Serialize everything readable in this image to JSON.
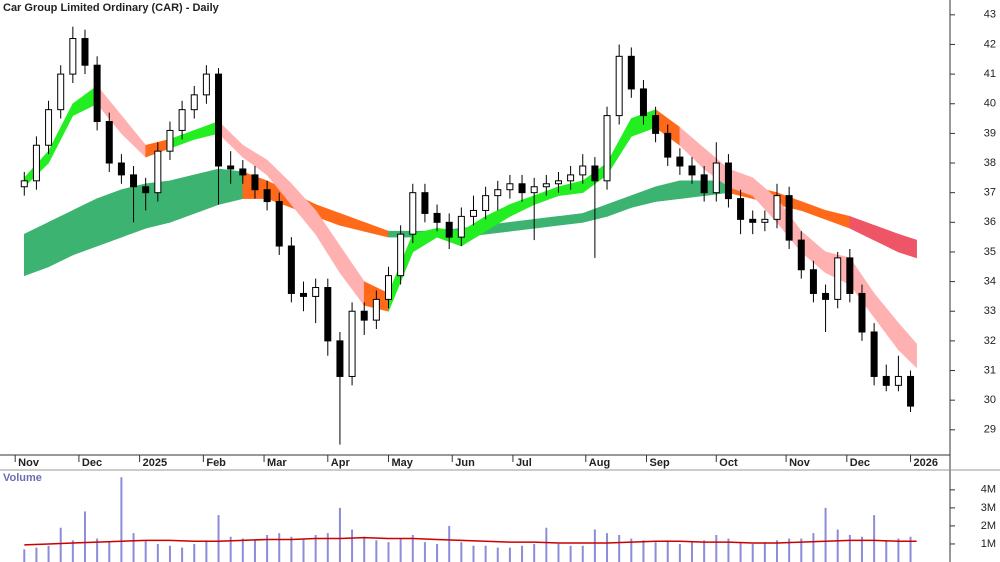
{
  "chart_data": {
    "type": "candlestick",
    "title": "Car Group Limited Ordinary (CAR) - Daily",
    "x": [
      0,
      4,
      8,
      12,
      16,
      20,
      24,
      28,
      32,
      36,
      40,
      44,
      48,
      52,
      56,
      60,
      64,
      68,
      72,
      76,
      80,
      84,
      88,
      92,
      96,
      100,
      104,
      108,
      112,
      116,
      120,
      124,
      128,
      132,
      136,
      140,
      144,
      148,
      152,
      156,
      160,
      164,
      168,
      172,
      176,
      180,
      184,
      188,
      192,
      196,
      200,
      204,
      208,
      212,
      216,
      220,
      224,
      228,
      232,
      236,
      240,
      244,
      248,
      252,
      256,
      260,
      264,
      268,
      272,
      276,
      280,
      284,
      288,
      292
    ],
    "open": [
      37.2,
      37.4,
      38.6,
      39.8,
      41.0,
      42.2,
      41.3,
      39.4,
      38.0,
      37.6,
      37.2,
      37.0,
      38.4,
      39.1,
      39.8,
      40.3,
      41.0,
      37.9,
      37.8,
      37.6,
      37.1,
      36.7,
      35.2,
      33.6,
      33.5,
      33.8,
      32.0,
      30.8,
      33.0,
      32.7,
      33.4,
      34.2,
      35.6,
      37.0,
      36.3,
      36.0,
      35.5,
      36.2,
      36.4,
      36.9,
      37.1,
      37.3,
      37.0,
      37.2,
      37.3,
      37.4,
      37.6,
      37.9,
      37.4,
      39.6,
      41.6,
      40.5,
      39.6,
      39.0,
      38.2,
      37.9,
      37.6,
      37.0,
      38.0,
      36.8,
      36.1,
      36.0,
      36.1,
      36.9,
      35.4,
      34.4,
      33.6,
      33.4,
      34.8,
      33.6,
      32.3,
      30.8,
      30.5,
      30.8
    ],
    "high": [
      37.7,
      38.9,
      40.1,
      41.3,
      42.6,
      42.5,
      41.6,
      39.7,
      38.3,
      37.9,
      37.5,
      38.7,
      39.4,
      40.1,
      40.6,
      41.3,
      41.2,
      38.4,
      38.1,
      37.9,
      37.4,
      37.0,
      35.5,
      34.0,
      34.1,
      34.1,
      32.3,
      33.3,
      33.3,
      33.7,
      34.5,
      35.9,
      37.3,
      37.3,
      36.6,
      36.3,
      36.5,
      36.9,
      37.2,
      37.4,
      37.6,
      37.6,
      37.5,
      37.6,
      37.7,
      37.9,
      38.3,
      38.2,
      39.9,
      42.0,
      41.9,
      40.8,
      39.9,
      39.3,
      38.5,
      38.2,
      37.9,
      38.7,
      38.3,
      37.1,
      36.4,
      36.4,
      37.3,
      37.2,
      35.7,
      34.7,
      33.9,
      35.0,
      35.1,
      33.9,
      32.6,
      31.2,
      31.5,
      31.0
    ],
    "low": [
      36.9,
      37.1,
      38.3,
      39.5,
      40.7,
      41.0,
      39.1,
      37.7,
      37.3,
      36.0,
      36.4,
      36.7,
      38.1,
      38.8,
      39.5,
      40.0,
      36.6,
      37.3,
      37.3,
      36.8,
      36.4,
      34.9,
      33.3,
      33.0,
      32.6,
      31.5,
      28.5,
      30.5,
      32.2,
      32.4,
      33.1,
      33.9,
      35.3,
      36.0,
      35.7,
      35.1,
      35.2,
      35.9,
      36.1,
      36.4,
      36.8,
      36.7,
      35.4,
      36.9,
      37.0,
      37.1,
      37.3,
      34.8,
      37.1,
      39.3,
      40.2,
      39.3,
      38.7,
      37.9,
      37.6,
      37.3,
      36.7,
      36.7,
      36.5,
      35.6,
      35.6,
      35.7,
      35.8,
      35.1,
      34.1,
      33.3,
      32.3,
      33.1,
      33.3,
      32.0,
      30.5,
      30.3,
      30.3,
      29.6
    ],
    "close": [
      37.4,
      38.6,
      39.8,
      41.0,
      42.2,
      41.3,
      39.4,
      38.0,
      37.6,
      37.2,
      37.0,
      38.4,
      39.1,
      39.8,
      40.3,
      41.0,
      37.9,
      37.8,
      37.6,
      37.1,
      36.7,
      35.2,
      33.6,
      33.5,
      33.8,
      32.0,
      30.8,
      33.0,
      32.7,
      33.4,
      34.2,
      35.6,
      37.0,
      36.3,
      36.0,
      35.5,
      36.2,
      36.4,
      36.9,
      37.1,
      37.3,
      37.0,
      37.2,
      37.3,
      37.4,
      37.6,
      37.9,
      37.4,
      39.6,
      41.6,
      40.5,
      39.6,
      39.0,
      38.2,
      37.9,
      37.6,
      37.0,
      38.0,
      36.8,
      36.1,
      36.0,
      36.1,
      36.9,
      35.4,
      34.4,
      33.6,
      33.4,
      34.8,
      33.6,
      32.3,
      30.8,
      30.5,
      30.8,
      29.8
    ],
    "up_color": "#ffffff",
    "down_color": "#000000",
    "xlim": [
      -8,
      305
    ],
    "xticks": [
      {
        "value": -3,
        "label": "Nov"
      },
      {
        "value": 18,
        "label": "Dec"
      },
      {
        "value": 38,
        "label": "2025"
      },
      {
        "value": 59,
        "label": "Feb"
      },
      {
        "value": 79,
        "label": "Mar"
      },
      {
        "value": 100,
        "label": "Apr"
      },
      {
        "value": 120,
        "label": "May"
      },
      {
        "value": 141,
        "label": "Jun"
      },
      {
        "value": 161,
        "label": "Jul"
      },
      {
        "value": 185,
        "label": "Aug"
      },
      {
        "value": 205,
        "label": "Sep"
      },
      {
        "value": 228,
        "label": "Oct"
      },
      {
        "value": 251,
        "label": "Nov"
      },
      {
        "value": 271,
        "label": "Dec"
      },
      {
        "value": 292,
        "label": "2026"
      }
    ],
    "ylim": [
      28.15,
      43.5
    ],
    "yticks": [
      29,
      30,
      31,
      32,
      33,
      34,
      35,
      36,
      37,
      38,
      39,
      40,
      41,
      42,
      43
    ],
    "bands": {
      "x": [
        0,
        8,
        16,
        24,
        32,
        40,
        48,
        56,
        64,
        72,
        80,
        88,
        96,
        104,
        112,
        120,
        128,
        136,
        144,
        152,
        160,
        168,
        176,
        184,
        192,
        200,
        208,
        216,
        224,
        232,
        240,
        248,
        256,
        264,
        272,
        280,
        288,
        294
      ],
      "series": [
        {
          "lower": [
            34.2,
            34.5,
            34.9,
            35.2,
            35.5,
            35.8,
            36.0,
            36.3,
            36.6,
            36.8,
            36.8,
            36.5,
            36.2,
            35.9,
            35.7,
            35.5,
            35.5,
            35.5,
            35.5,
            35.6,
            35.7,
            35.8,
            35.9,
            36.0,
            36.2,
            36.5,
            36.7,
            36.8,
            36.9,
            37.0,
            36.8,
            36.6,
            36.4,
            36.1,
            35.8,
            35.4,
            35.0,
            34.8
          ],
          "upper": [
            35.6,
            36.0,
            36.4,
            36.8,
            37.1,
            37.3,
            37.4,
            37.6,
            37.8,
            37.7,
            37.4,
            37.0,
            36.6,
            36.3,
            36.0,
            35.7,
            35.7,
            35.7,
            35.8,
            35.9,
            36.0,
            36.1,
            36.2,
            36.3,
            36.6,
            36.9,
            37.2,
            37.4,
            37.4,
            37.4,
            37.2,
            37.0,
            36.7,
            36.4,
            36.2,
            35.9,
            35.6,
            35.4
          ],
          "colors": [
            "#3cb371",
            "#3cb371",
            "#3cb371",
            "#3cb371",
            "#3cb371",
            "#3cb371",
            "#3cb371",
            "#3cb371",
            "#3cb371",
            "#ff6a1a",
            "#ff6a1a",
            "#ff6a1a",
            "#ff6a1a",
            "#ff6a1a",
            "#ff6a1a",
            "#3cb371",
            "#3cb371",
            "#3cb371",
            "#3cb371",
            "#3cb371",
            "#3cb371",
            "#3cb371",
            "#3cb371",
            "#3cb371",
            "#3cb371",
            "#3cb371",
            "#3cb371",
            "#3cb371",
            "#3cb371",
            "#ff6a1a",
            "#ff6a1a",
            "#ff6a1a",
            "#ff6a1a",
            "#ff6a1a",
            "#ee5566",
            "#ee5566",
            "#ee5566"
          ]
        },
        {
          "lower": [
            37.2,
            38.0,
            39.6,
            40.0,
            39.0,
            38.2,
            38.5,
            38.8,
            39.0,
            38.2,
            37.6,
            36.6,
            35.6,
            34.3,
            33.2,
            33.0,
            35.0,
            35.5,
            35.2,
            35.7,
            36.2,
            36.6,
            36.9,
            37.0,
            37.6,
            38.9,
            39.2,
            38.6,
            37.8,
            37.2,
            36.9,
            36.0,
            35.0,
            34.3,
            33.9,
            32.8,
            31.7,
            31.1
          ],
          "upper": [
            37.5,
            38.4,
            40.0,
            40.6,
            39.6,
            38.6,
            38.8,
            39.1,
            39.4,
            38.6,
            38.1,
            37.3,
            36.4,
            35.2,
            34.0,
            33.6,
            35.6,
            35.8,
            35.7,
            36.2,
            36.6,
            36.9,
            37.2,
            37.4,
            38.0,
            39.5,
            39.8,
            39.2,
            38.5,
            37.8,
            37.5,
            36.8,
            35.7,
            35.0,
            34.8,
            33.6,
            32.6,
            31.9
          ],
          "colors": [
            "#22ee22",
            "#22ee22",
            "#22ee22",
            "#ffb0b0",
            "#ffb0b0",
            "#ff6a1a",
            "#22ee22",
            "#22ee22",
            "#ffb0b0",
            "#ffb0b0",
            "#ffb0b0",
            "#ffb0b0",
            "#ffb0b0",
            "#ffb0b0",
            "#ff6a1a",
            "#22ee22",
            "#22ee22",
            "#22ee22",
            "#22ee22",
            "#22ee22",
            "#22ee22",
            "#22ee22",
            "#22ee22",
            "#22ee22",
            "#22ee22",
            "#22ee22",
            "#ff6a1a",
            "#ffb0b0",
            "#ffb0b0",
            "#ffb0b0",
            "#ffb0b0",
            "#ffb0b0",
            "#ffb0b0",
            "#ffb0b0",
            "#ffb0b0",
            "#ffb0b0",
            "#ffb0b0"
          ]
        }
      ]
    },
    "volume": {
      "label": "Volume",
      "color": "#8c8cd9",
      "values": [
        700000,
        800000,
        900000,
        1900000,
        1200000,
        2800000,
        1300000,
        1100000,
        4700000,
        1600000,
        1200000,
        1000000,
        900000,
        800000,
        1000000,
        1200000,
        2600000,
        1400000,
        1300000,
        1200000,
        1500000,
        1600000,
        1400000,
        1300000,
        1500000,
        1600000,
        3000000,
        1800000,
        1400000,
        1200000,
        1100000,
        1300000,
        1500000,
        1100000,
        1000000,
        2000000,
        1100000,
        900000,
        900000,
        800000,
        800000,
        900000,
        1000000,
        1900000,
        1000000,
        900000,
        900000,
        1800000,
        1600000,
        1500000,
        1300000,
        1200000,
        1100000,
        1200000,
        1000000,
        1100000,
        1200000,
        1500000,
        1300000,
        1100000,
        1000000,
        1100000,
        1200000,
        1300000,
        1300000,
        1600000,
        3000000,
        1800000,
        1500000,
        1400000,
        2600000,
        1200000,
        1300000,
        1400000
      ],
      "ma_color": "#cc0000",
      "ma": [
        950000,
        1000000,
        1050000,
        1100000,
        1150000,
        1200000,
        1200000,
        1150000,
        1150000,
        1200000,
        1250000,
        1250000,
        1300000,
        1300000,
        1350000,
        1300000,
        1300000,
        1250000,
        1200000,
        1150000,
        1100000,
        1100000,
        1050000,
        1050000,
        1050000,
        1100000,
        1150000,
        1150000,
        1100000,
        1100000,
        1050000,
        1050000,
        1100000,
        1150000,
        1200000,
        1200000,
        1150000,
        1150000
      ],
      "ylim": [
        0,
        5100000
      ],
      "yticks": [
        {
          "value": 1000000,
          "label": "1M"
        },
        {
          "value": 2000000,
          "label": "2M"
        },
        {
          "value": 3000000,
          "label": "3M"
        },
        {
          "value": 4000000,
          "label": "4M"
        }
      ]
    }
  }
}
